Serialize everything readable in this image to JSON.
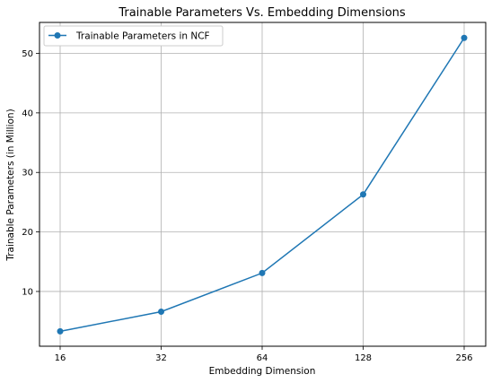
{
  "chart_data": {
    "type": "line",
    "title": "Trainable Parameters Vs. Embedding Dimensions",
    "xlabel": "Embedding Dimension",
    "ylabel": "Trainable Parameters (in Million)",
    "categories": [
      "16",
      "32",
      "64",
      "128",
      "256"
    ],
    "series": [
      {
        "name": "Trainable Parameters in NCF",
        "values": [
          3.3,
          6.6,
          13.1,
          26.3,
          52.6
        ],
        "color": "#1f77b4",
        "marker": "circle"
      }
    ],
    "yticks": [
      10,
      20,
      30,
      40,
      50
    ],
    "ylim": [
      0.8,
      55.2
    ],
    "grid": true,
    "legend_position": "top-left"
  }
}
